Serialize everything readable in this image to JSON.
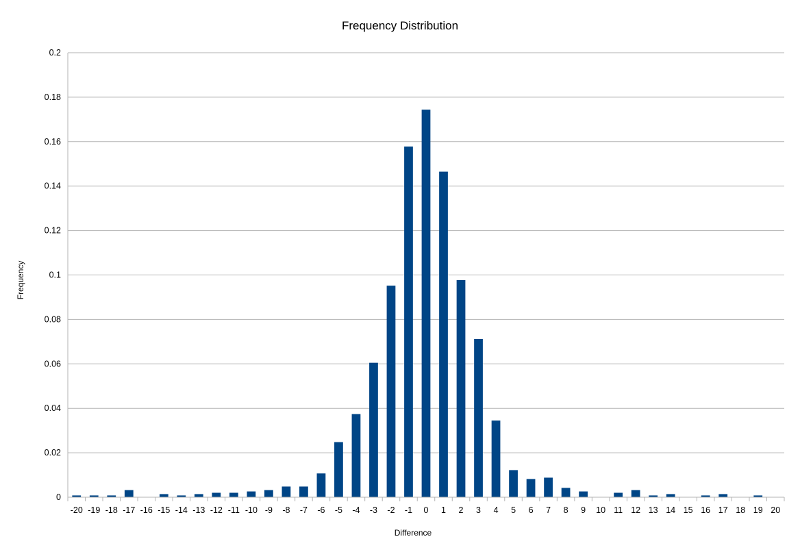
{
  "chart_data": {
    "type": "bar",
    "title": "Frequency Distribution",
    "xlabel": "Difference",
    "ylabel": "Frequency",
    "ylim": [
      0,
      0.2
    ],
    "yticks": [
      "0",
      "0.02",
      "0.04",
      "0.06",
      "0.08",
      "0.1",
      "0.12",
      "0.14",
      "0.16",
      "0.18",
      "0.2"
    ],
    "grid": true,
    "legend": "none",
    "bar_color": "#004586",
    "categories": [
      "-20",
      "-19",
      "-18",
      "-17",
      "-16",
      "-15",
      "-14",
      "-13",
      "-12",
      "-11",
      "-10",
      "-9",
      "-8",
      "-7",
      "-6",
      "-5",
      "-4",
      "-3",
      "-2",
      "-1",
      "0",
      "1",
      "2",
      "3",
      "4",
      "5",
      "6",
      "7",
      "8",
      "9",
      "10",
      "11",
      "12",
      "13",
      "14",
      "15",
      "16",
      "17",
      "18",
      "19",
      "20"
    ],
    "values": [
      0.0008,
      0.0008,
      0.0008,
      0.0032,
      0,
      0.0014,
      0.0008,
      0.0014,
      0.002,
      0.002,
      0.0026,
      0.0032,
      0.0048,
      0.0048,
      0.0107,
      0.0248,
      0.0374,
      0.0605,
      0.0952,
      0.1578,
      0.1744,
      0.1465,
      0.0977,
      0.0712,
      0.0345,
      0.0122,
      0.0082,
      0.0088,
      0.0042,
      0.0026,
      0,
      0.002,
      0.0032,
      0.0008,
      0.0014,
      0,
      0.0008,
      0.0014,
      0,
      0.0008,
      0
    ]
  }
}
